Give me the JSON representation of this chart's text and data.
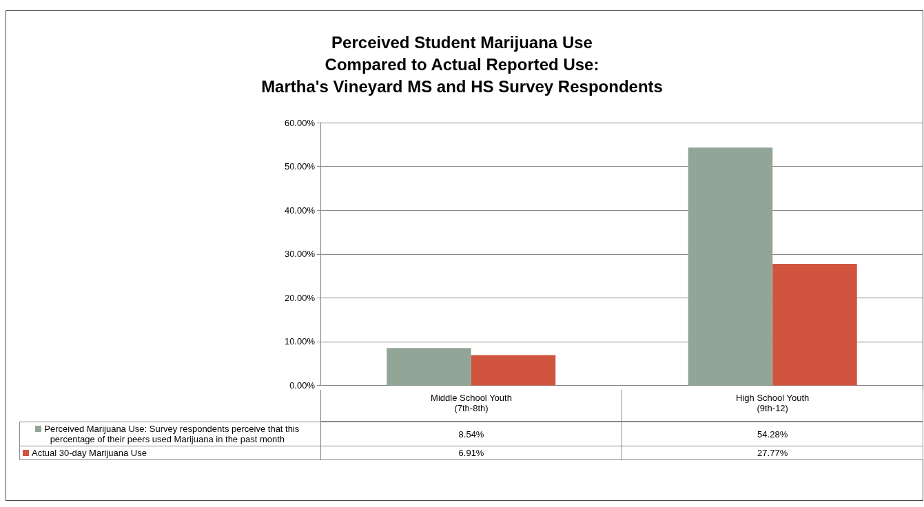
{
  "chart_data": {
    "type": "bar",
    "title": "Perceived Student Marijuana Use\nCompared to Actual Reported Use:\nMartha's Vineyard MS and HS Survey Respondents",
    "categories": [
      "Middle School Youth\n(7th-8th)",
      "High School Youth\n(9th-12)"
    ],
    "series": [
      {
        "name": "Perceived Marijuana Use: Survey respondents perceive that this percentage of their peers used Marijuana in the past month",
        "color": "#93a597",
        "values": [
          8.54,
          54.28
        ],
        "value_labels": [
          "8.54%",
          "54.28%"
        ]
      },
      {
        "name": "Actual 30-day Marijuana Use",
        "color": "#d1553e",
        "values": [
          6.91,
          27.77
        ],
        "value_labels": [
          "6.91%",
          "27.77%"
        ]
      }
    ],
    "ylim": [
      0,
      60
    ],
    "yticks": [
      {
        "value": 0,
        "label": "0.00%"
      },
      {
        "value": 10,
        "label": "10.00%"
      },
      {
        "value": 20,
        "label": "20.00%"
      },
      {
        "value": 30,
        "label": "30.00%"
      },
      {
        "value": 40,
        "label": "40.00%"
      },
      {
        "value": 50,
        "label": "50.00%"
      },
      {
        "value": 60,
        "label": "60.00%"
      }
    ],
    "grid": "y",
    "legend": "bottom"
  }
}
